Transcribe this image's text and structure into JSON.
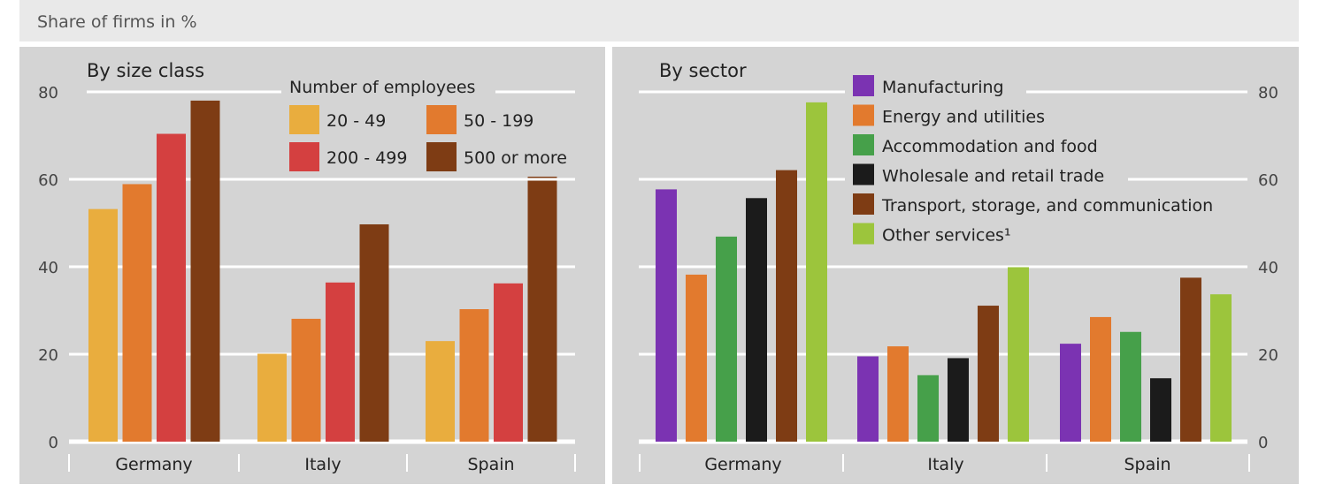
{
  "header": {
    "title": "Share of firms in %"
  },
  "colors": {
    "header_bg": "#e9e9e9",
    "panel_bg": "#d4d4d4",
    "size": [
      "#e9ad3e",
      "#e27a2e",
      "#d44040",
      "#7e3c14"
    ],
    "sector": [
      "#7b33b2",
      "#e27a2e",
      "#46a04a",
      "#1b1b1b",
      "#7e3c14",
      "#9cc53c"
    ]
  },
  "chart_data": [
    {
      "type": "bar",
      "title": "By size class",
      "legend_title": "Number of employees",
      "ylabel": "Share of firms in %",
      "ylim": [
        0,
        80
      ],
      "yticks": [
        "0",
        "20",
        "40",
        "60",
        "80"
      ],
      "categories": [
        "Germany",
        "Italy",
        "Spain"
      ],
      "series": [
        {
          "name": "20 - 49",
          "values": [
            53.2,
            20.1,
            23.0
          ]
        },
        {
          "name": "50 - 199",
          "values": [
            58.9,
            28.1,
            30.3
          ]
        },
        {
          "name": "200 - 499",
          "values": [
            70.4,
            36.4,
            36.2
          ]
        },
        {
          "name": "500 or more",
          "values": [
            78.0,
            49.7,
            60.9
          ]
        }
      ],
      "grid": true,
      "legend_position": "top-right"
    },
    {
      "type": "bar",
      "title": "By sector",
      "ylabel": "Share of firms in %",
      "ylim": [
        0,
        80
      ],
      "yticks": [
        "0",
        "20",
        "40",
        "60",
        "80"
      ],
      "categories": [
        "Germany",
        "Italy",
        "Spain"
      ],
      "series": [
        {
          "name": "Manufacturing",
          "values": [
            57.7,
            19.5,
            22.4
          ]
        },
        {
          "name": "Energy and utilities",
          "values": [
            38.2,
            21.8,
            28.5
          ]
        },
        {
          "name": "Accommodation and food",
          "values": [
            46.9,
            15.2,
            25.1
          ]
        },
        {
          "name": "Wholesale and retail trade",
          "values": [
            55.7,
            19.1,
            14.5
          ]
        },
        {
          "name": "Transport, storage, and communication",
          "values": [
            62.1,
            31.1,
            37.5
          ]
        },
        {
          "name": "Other services¹",
          "values": [
            77.6,
            39.9,
            33.7
          ]
        }
      ],
      "grid": true,
      "legend_position": "top-right"
    }
  ]
}
